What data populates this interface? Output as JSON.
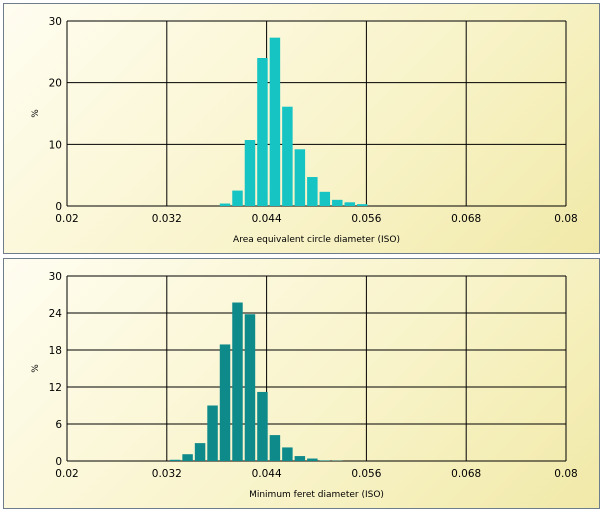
{
  "colors": {
    "top_bar": "#17c4c4",
    "bottom_bar": "#0e8a8a",
    "grid": "#000000"
  },
  "chart_data": [
    {
      "type": "bar",
      "title": "",
      "xlabel": "Area equivalent circle diameter (ISO)",
      "ylabel": "%",
      "xlim": [
        0.02,
        0.08
      ],
      "ylim": [
        0,
        30
      ],
      "x_ticks": [
        "0.02",
        "0.032",
        "0.044",
        "0.056",
        "0.068",
        "0.08"
      ],
      "y_ticks": [
        "0",
        "10",
        "20",
        "30"
      ],
      "grid": true,
      "bin_width": 0.0015,
      "x": [
        0.039,
        0.0405,
        0.042,
        0.0435,
        0.045,
        0.0465,
        0.048,
        0.0495,
        0.051,
        0.0525,
        0.054,
        0.0555
      ],
      "values": [
        0.4,
        2.5,
        10.7,
        24.0,
        27.3,
        16.1,
        9.2,
        4.7,
        2.3,
        1.0,
        0.6,
        0.3
      ]
    },
    {
      "type": "bar",
      "title": "",
      "xlabel": "Minimum feret diameter (ISO)",
      "ylabel": "%",
      "xlim": [
        0.02,
        0.08
      ],
      "ylim": [
        0,
        30
      ],
      "x_ticks": [
        "0.02",
        "0.032",
        "0.044",
        "0.056",
        "0.068",
        "0.08"
      ],
      "y_ticks": [
        "0",
        "6",
        "12",
        "18",
        "24",
        "30"
      ],
      "grid": true,
      "bin_width": 0.0015,
      "x": [
        0.033,
        0.0345,
        0.036,
        0.0375,
        0.039,
        0.0405,
        0.042,
        0.0435,
        0.045,
        0.0465,
        0.048,
        0.0495,
        0.051,
        0.0525
      ],
      "values": [
        0.2,
        1.1,
        2.9,
        9.0,
        18.9,
        25.7,
        23.8,
        11.2,
        4.2,
        2.2,
        0.8,
        0.4,
        0.1,
        0.05
      ]
    }
  ]
}
